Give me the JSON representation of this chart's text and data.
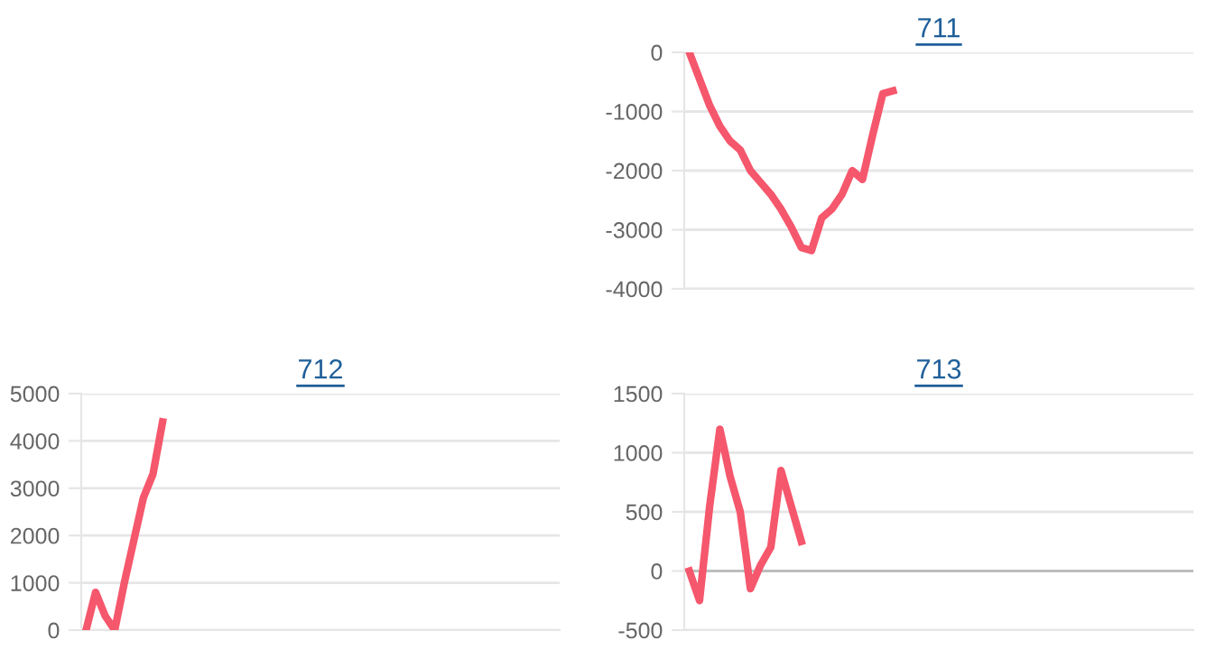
{
  "chart_data": [
    {
      "type": "line",
      "title": "711",
      "categories": [
        null,
        null,
        null,
        null,
        null,
        null,
        null,
        null,
        null,
        null,
        null,
        null,
        null,
        null,
        null,
        null,
        null,
        null,
        null,
        null,
        null,
        null,
        null,
        null,
        null,
        null,
        null,
        null,
        null,
        null,
        null,
        null,
        null,
        null,
        null,
        null,
        null,
        null,
        null,
        null,
        null,
        null,
        null,
        null,
        null,
        null,
        null,
        null,
        null,
        null
      ],
      "series": [
        {
          "color": "#f5576c",
          "values": [
            0,
            -450,
            -900,
            -1250,
            -1500,
            -1650,
            -2000,
            -2200,
            -2400,
            -2650,
            -2950,
            -3300,
            -3350,
            -2800,
            -2650,
            -2400,
            -2000,
            -2150,
            -1400,
            -700,
            -650,
            null,
            null,
            null,
            null,
            null,
            null,
            null,
            null,
            null,
            null,
            null,
            null,
            null,
            null,
            null,
            null,
            null,
            null,
            null,
            null,
            null,
            null,
            null,
            null,
            null,
            null,
            null,
            null,
            null
          ]
        }
      ],
      "ylim": [
        -4000,
        0
      ],
      "yticks": [
        0,
        -1000,
        -2000,
        -3000,
        -4000
      ],
      "grid": "y",
      "tick_labels": "y",
      "marker": "none",
      "legend": false
    },
    {
      "type": "line",
      "title": "712",
      "categories": [
        null,
        null,
        null,
        null,
        null,
        null,
        null,
        null,
        null,
        null,
        null,
        null,
        null,
        null,
        null,
        null,
        null,
        null,
        null,
        null,
        null,
        null,
        null,
        null,
        null,
        null,
        null,
        null,
        null,
        null,
        null,
        null,
        null,
        null,
        null,
        null,
        null,
        null,
        null,
        null,
        null,
        null,
        null,
        null,
        null,
        null,
        null,
        null,
        null,
        null
      ],
      "series": [
        {
          "color": "#f5576c",
          "values": [
            0,
            800,
            300,
            0,
            1000,
            1900,
            2800,
            3300,
            4400,
            null,
            null,
            null,
            null,
            null,
            null,
            null,
            null,
            null,
            null,
            null,
            null,
            null,
            null,
            null,
            null,
            null,
            null,
            null,
            null,
            null,
            null,
            null,
            null,
            null,
            null,
            null,
            null,
            null,
            null,
            null,
            null,
            null,
            null,
            null,
            null,
            null,
            null,
            null,
            null,
            null
          ]
        }
      ],
      "ylim": [
        0,
        5000
      ],
      "yticks": [
        0,
        1000,
        2000,
        3000,
        4000,
        5000
      ],
      "grid": "y",
      "tick_labels": "y",
      "marker": "none",
      "legend": false
    },
    {
      "type": "line",
      "title": "713",
      "categories": [
        null,
        null,
        null,
        null,
        null,
        null,
        null,
        null,
        null,
        null,
        null,
        null,
        null,
        null,
        null,
        null,
        null,
        null,
        null,
        null,
        null,
        null,
        null,
        null,
        null,
        null,
        null,
        null,
        null,
        null,
        null,
        null,
        null,
        null,
        null,
        null,
        null,
        null,
        null,
        null,
        null,
        null,
        null,
        null,
        null,
        null,
        null,
        null,
        null,
        null
      ],
      "series": [
        {
          "color": "#f5576c",
          "values": [
            0,
            -250,
            550,
            1200,
            800,
            500,
            -150,
            50,
            200,
            850,
            550,
            250,
            null,
            null,
            null,
            null,
            null,
            null,
            null,
            null,
            null,
            null,
            null,
            null,
            null,
            null,
            null,
            null,
            null,
            null,
            null,
            null,
            null,
            null,
            null,
            null,
            null,
            null,
            null,
            null,
            null,
            null,
            null,
            null,
            null,
            null,
            null,
            null,
            null,
            null
          ]
        }
      ],
      "ylim": [
        -500,
        1500
      ],
      "yticks": [
        -500,
        0,
        500,
        1000,
        1500
      ],
      "grid": "y",
      "tick_labels": "y",
      "marker": "none",
      "legend": false
    }
  ]
}
